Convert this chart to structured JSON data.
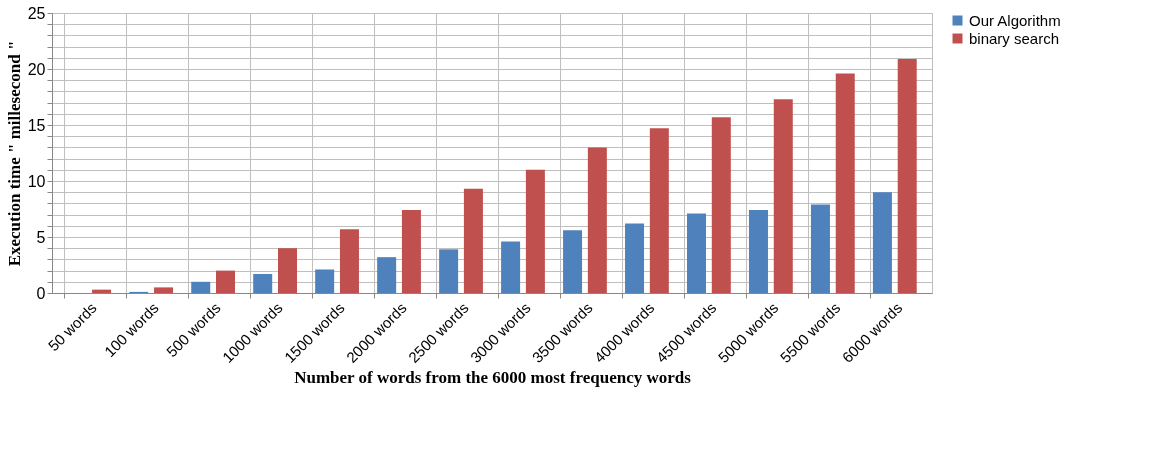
{
  "chart_data": {
    "type": "bar",
    "xlabel": "Number of words from the 6000 most frequency words",
    "ylabel": "Execution time \" millesecond \"",
    "categories": [
      "50 words",
      "100 words",
      "500 words",
      "1000 words",
      "1500 words",
      "2000 words",
      "2500 words",
      "3000 words",
      "3500 words",
      "4000 words",
      "4500 words",
      "5000 words",
      "5500 words",
      "6000 words"
    ],
    "series": [
      {
        "name": "Our Algorithm",
        "color": "#4f81bd",
        "values": [
          0,
          0.1,
          1.0,
          1.7,
          2.1,
          3.2,
          3.9,
          4.6,
          5.6,
          6.2,
          7.1,
          7.4,
          7.9,
          9.0
        ]
      },
      {
        "name": "binary search",
        "color": "#c0504d",
        "values": [
          0.3,
          0.5,
          2.0,
          4.0,
          5.7,
          7.4,
          9.3,
          11.0,
          13.0,
          14.7,
          15.7,
          17.3,
          19.6,
          20.9
        ]
      }
    ],
    "ylim": [
      0,
      25
    ],
    "yticks": [
      0,
      {
        "value": 1,
        "label": null
      },
      {
        "value": 2,
        "label": null
      },
      {
        "value": 3,
        "label": null
      },
      {
        "value": 4,
        "label": null
      },
      5,
      {
        "value": 6,
        "label": null
      },
      {
        "value": 7,
        "label": null
      },
      {
        "value": 8,
        "label": null
      },
      {
        "value": 9,
        "label": null
      },
      10,
      {
        "value": 11,
        "label": null
      },
      {
        "value": 12,
        "label": null
      },
      {
        "value": 13,
        "label": null
      },
      {
        "value": 14,
        "label": null
      },
      15,
      {
        "value": 16,
        "label": null
      },
      {
        "value": 17,
        "label": null
      },
      {
        "value": 18,
        "label": null
      },
      {
        "value": 19,
        "label": null
      },
      20,
      {
        "value": 21,
        "label": null
      },
      {
        "value": 22,
        "label": null
      },
      {
        "value": 23,
        "label": null
      },
      {
        "value": 24,
        "label": null
      },
      25
    ],
    "grid": true,
    "legend": "right"
  }
}
